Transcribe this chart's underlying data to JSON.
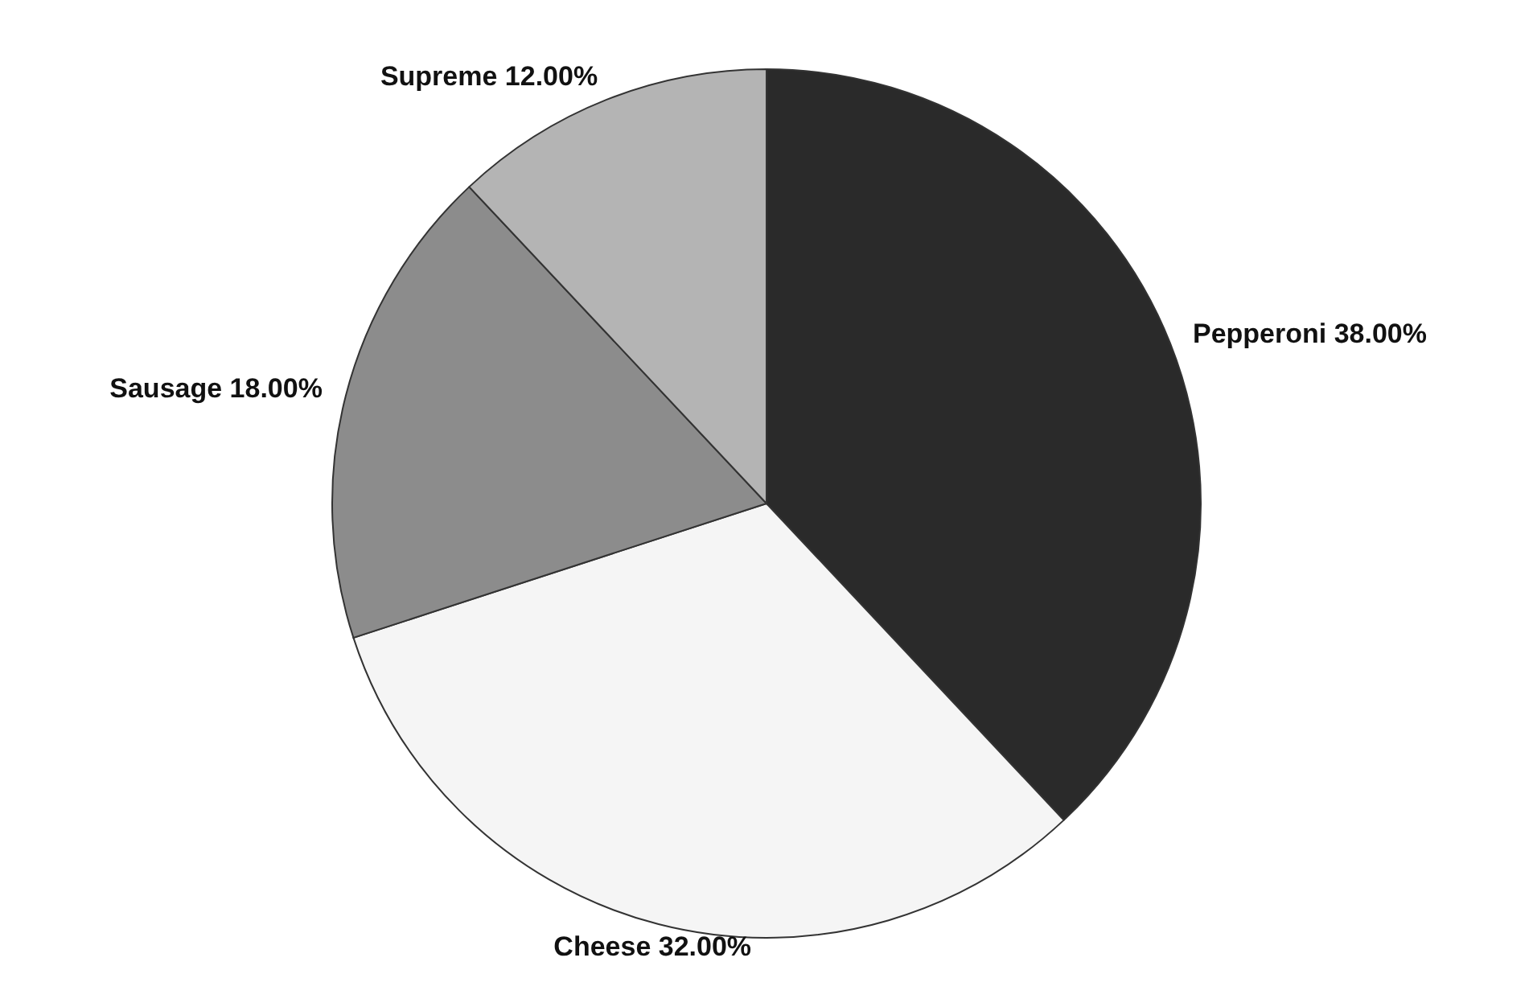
{
  "chart_data": {
    "type": "pie",
    "categories": [
      "Pepperoni",
      "Cheese",
      "Sausage",
      "Supreme"
    ],
    "values": [
      38,
      32,
      18,
      12
    ],
    "value_labels": [
      "38.00%",
      "32.00%",
      "18.00%",
      "12.00%"
    ],
    "colors": [
      "#2a2a2a",
      "#f5f5f5",
      "#8c8c8c",
      "#b4b4b4"
    ]
  }
}
